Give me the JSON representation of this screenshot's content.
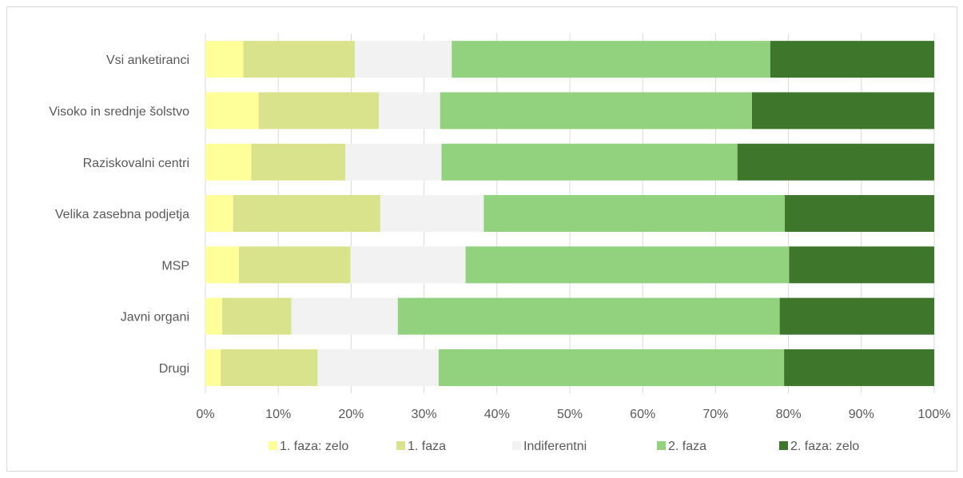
{
  "chart_data": {
    "type": "bar",
    "orientation": "horizontal",
    "stacked": "percent",
    "title": "",
    "xlabel": "",
    "ylabel": "",
    "categories": [
      "Vsi anketiranci",
      "Visoko in srednje šolstvo",
      "Raziskovalni centri",
      "Velika zasebna podjetja",
      "MSP",
      "Javni organi",
      "Drugi"
    ],
    "series": [
      {
        "name": "1. faza: zelo",
        "color": "#ffff99",
        "values": [
          5.2,
          7.3,
          6.3,
          3.8,
          4.6,
          2.3,
          2.1
        ]
      },
      {
        "name": "1. faza",
        "color": "#d9e38b",
        "values": [
          15.3,
          16.5,
          12.9,
          20.2,
          15.3,
          9.5,
          13.3
        ]
      },
      {
        "name": "Indiferentni",
        "color": "#f2f2f2",
        "values": [
          13.3,
          8.4,
          13.2,
          14.2,
          15.8,
          14.6,
          16.6
        ]
      },
      {
        "name": "2. faza",
        "color": "#92d17e",
        "values": [
          43.7,
          42.8,
          40.6,
          41.3,
          44.4,
          52.4,
          47.4
        ]
      },
      {
        "name": "2. faza: zelo",
        "color": "#3e772b",
        "values": [
          22.5,
          25.0,
          27.0,
          20.5,
          19.9,
          21.2,
          20.6
        ]
      }
    ],
    "xlim": [
      0,
      100
    ],
    "xticks": [
      "0%",
      "10%",
      "20%",
      "30%",
      "40%",
      "50%",
      "60%",
      "70%",
      "80%",
      "90%",
      "100%"
    ],
    "grid": "vertical",
    "legend_position": "bottom"
  }
}
